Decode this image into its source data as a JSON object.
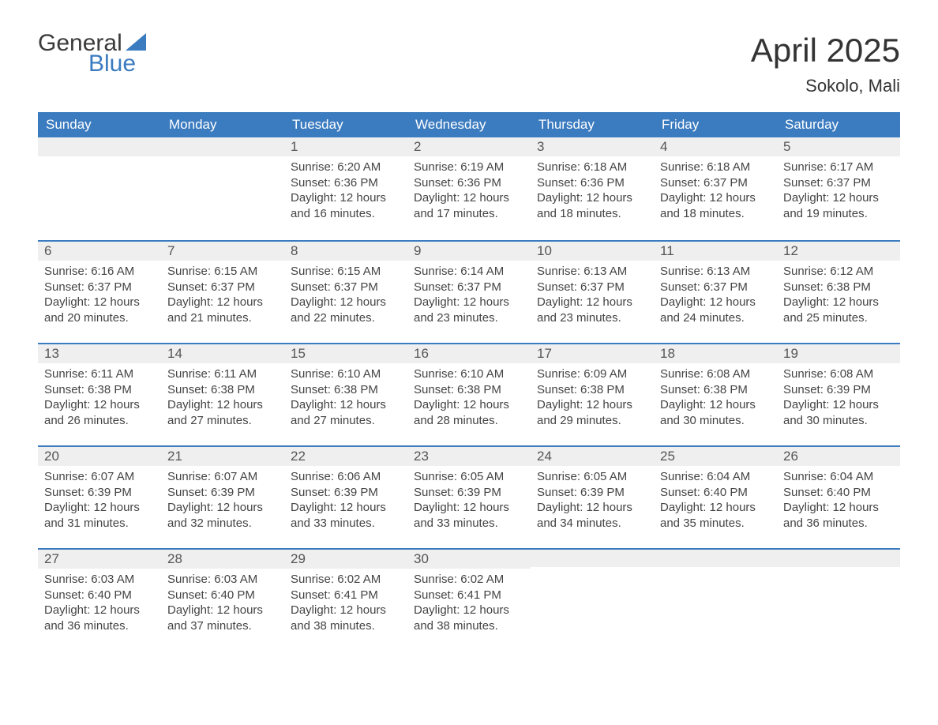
{
  "logo": {
    "top": "General",
    "bottom": "Blue"
  },
  "title": "April 2025",
  "location": "Sokolo, Mali",
  "colors": {
    "header_bg": "#3b7bbf",
    "header_text": "#ffffff",
    "daynum_bg": "#efefef",
    "border": "#3b7bbf",
    "text": "#444444",
    "page_bg": "#ffffff"
  },
  "day_headers": [
    "Sunday",
    "Monday",
    "Tuesday",
    "Wednesday",
    "Thursday",
    "Friday",
    "Saturday"
  ],
  "weeks": [
    [
      null,
      null,
      {
        "num": "1",
        "sunrise": "6:20 AM",
        "sunset": "6:36 PM",
        "daylight": "12 hours and 16 minutes."
      },
      {
        "num": "2",
        "sunrise": "6:19 AM",
        "sunset": "6:36 PM",
        "daylight": "12 hours and 17 minutes."
      },
      {
        "num": "3",
        "sunrise": "6:18 AM",
        "sunset": "6:36 PM",
        "daylight": "12 hours and 18 minutes."
      },
      {
        "num": "4",
        "sunrise": "6:18 AM",
        "sunset": "6:37 PM",
        "daylight": "12 hours and 18 minutes."
      },
      {
        "num": "5",
        "sunrise": "6:17 AM",
        "sunset": "6:37 PM",
        "daylight": "12 hours and 19 minutes."
      }
    ],
    [
      {
        "num": "6",
        "sunrise": "6:16 AM",
        "sunset": "6:37 PM",
        "daylight": "12 hours and 20 minutes."
      },
      {
        "num": "7",
        "sunrise": "6:15 AM",
        "sunset": "6:37 PM",
        "daylight": "12 hours and 21 minutes."
      },
      {
        "num": "8",
        "sunrise": "6:15 AM",
        "sunset": "6:37 PM",
        "daylight": "12 hours and 22 minutes."
      },
      {
        "num": "9",
        "sunrise": "6:14 AM",
        "sunset": "6:37 PM",
        "daylight": "12 hours and 23 minutes."
      },
      {
        "num": "10",
        "sunrise": "6:13 AM",
        "sunset": "6:37 PM",
        "daylight": "12 hours and 23 minutes."
      },
      {
        "num": "11",
        "sunrise": "6:13 AM",
        "sunset": "6:37 PM",
        "daylight": "12 hours and 24 minutes."
      },
      {
        "num": "12",
        "sunrise": "6:12 AM",
        "sunset": "6:38 PM",
        "daylight": "12 hours and 25 minutes."
      }
    ],
    [
      {
        "num": "13",
        "sunrise": "6:11 AM",
        "sunset": "6:38 PM",
        "daylight": "12 hours and 26 minutes."
      },
      {
        "num": "14",
        "sunrise": "6:11 AM",
        "sunset": "6:38 PM",
        "daylight": "12 hours and 27 minutes."
      },
      {
        "num": "15",
        "sunrise": "6:10 AM",
        "sunset": "6:38 PM",
        "daylight": "12 hours and 27 minutes."
      },
      {
        "num": "16",
        "sunrise": "6:10 AM",
        "sunset": "6:38 PM",
        "daylight": "12 hours and 28 minutes."
      },
      {
        "num": "17",
        "sunrise": "6:09 AM",
        "sunset": "6:38 PM",
        "daylight": "12 hours and 29 minutes."
      },
      {
        "num": "18",
        "sunrise": "6:08 AM",
        "sunset": "6:38 PM",
        "daylight": "12 hours and 30 minutes."
      },
      {
        "num": "19",
        "sunrise": "6:08 AM",
        "sunset": "6:39 PM",
        "daylight": "12 hours and 30 minutes."
      }
    ],
    [
      {
        "num": "20",
        "sunrise": "6:07 AM",
        "sunset": "6:39 PM",
        "daylight": "12 hours and 31 minutes."
      },
      {
        "num": "21",
        "sunrise": "6:07 AM",
        "sunset": "6:39 PM",
        "daylight": "12 hours and 32 minutes."
      },
      {
        "num": "22",
        "sunrise": "6:06 AM",
        "sunset": "6:39 PM",
        "daylight": "12 hours and 33 minutes."
      },
      {
        "num": "23",
        "sunrise": "6:05 AM",
        "sunset": "6:39 PM",
        "daylight": "12 hours and 33 minutes."
      },
      {
        "num": "24",
        "sunrise": "6:05 AM",
        "sunset": "6:39 PM",
        "daylight": "12 hours and 34 minutes."
      },
      {
        "num": "25",
        "sunrise": "6:04 AM",
        "sunset": "6:40 PM",
        "daylight": "12 hours and 35 minutes."
      },
      {
        "num": "26",
        "sunrise": "6:04 AM",
        "sunset": "6:40 PM",
        "daylight": "12 hours and 36 minutes."
      }
    ],
    [
      {
        "num": "27",
        "sunrise": "6:03 AM",
        "sunset": "6:40 PM",
        "daylight": "12 hours and 36 minutes."
      },
      {
        "num": "28",
        "sunrise": "6:03 AM",
        "sunset": "6:40 PM",
        "daylight": "12 hours and 37 minutes."
      },
      {
        "num": "29",
        "sunrise": "6:02 AM",
        "sunset": "6:41 PM",
        "daylight": "12 hours and 38 minutes."
      },
      {
        "num": "30",
        "sunrise": "6:02 AM",
        "sunset": "6:41 PM",
        "daylight": "12 hours and 38 minutes."
      },
      null,
      null,
      null
    ]
  ],
  "labels": {
    "sunrise_prefix": "Sunrise: ",
    "sunset_prefix": "Sunset: ",
    "daylight_prefix": "Daylight: "
  }
}
